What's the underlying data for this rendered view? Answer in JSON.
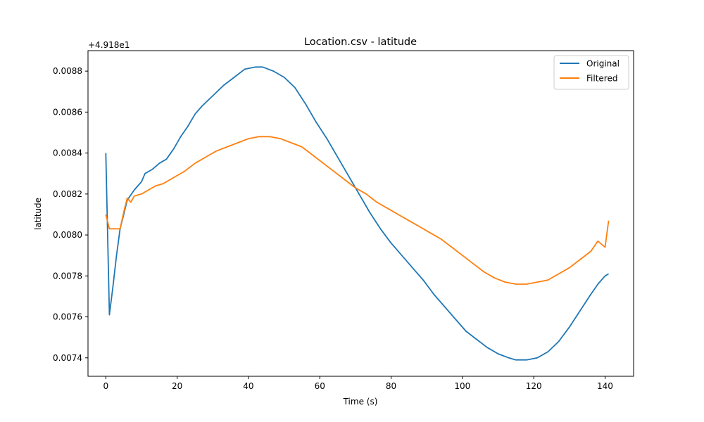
{
  "chart_data": {
    "type": "line",
    "title": "Location.csv - latitude",
    "xlabel": "Time (s)",
    "ylabel": "latitude",
    "y_offset_label": "+4.918e1",
    "xlim": [
      -5,
      148
    ],
    "ylim": [
      0.00731,
      0.0089
    ],
    "x_ticks": [
      0,
      20,
      40,
      60,
      80,
      100,
      120,
      140
    ],
    "x_tick_labels": [
      "0",
      "20",
      "40",
      "60",
      "80",
      "100",
      "120",
      "140"
    ],
    "y_ticks": [
      0.0074,
      0.0076,
      0.0078,
      0.008,
      0.0082,
      0.0084,
      0.0086,
      0.0088
    ],
    "y_tick_labels": [
      "0.0074",
      "0.0076",
      "0.0078",
      "0.0080",
      "0.0082",
      "0.0084",
      "0.0086",
      "0.0088"
    ],
    "grid": false,
    "legend_position": "top-right",
    "series": [
      {
        "name": "Original",
        "color": "#1f77b4",
        "points": [
          [
            0,
            0.0084
          ],
          [
            1,
            0.00761
          ],
          [
            2,
            0.00775
          ],
          [
            3,
            0.0079
          ],
          [
            4,
            0.00803
          ],
          [
            5,
            0.0081
          ],
          [
            6,
            0.00817
          ],
          [
            8,
            0.00822
          ],
          [
            10,
            0.00826
          ],
          [
            11,
            0.0083
          ],
          [
            13,
            0.00832
          ],
          [
            15,
            0.00835
          ],
          [
            17,
            0.00837
          ],
          [
            19,
            0.00842
          ],
          [
            21,
            0.00848
          ],
          [
            23,
            0.00853
          ],
          [
            25,
            0.00859
          ],
          [
            27,
            0.00863
          ],
          [
            30,
            0.00868
          ],
          [
            33,
            0.00873
          ],
          [
            36,
            0.00877
          ],
          [
            39,
            0.00881
          ],
          [
            42,
            0.00882
          ],
          [
            44,
            0.00882
          ],
          [
            47,
            0.0088
          ],
          [
            50,
            0.00877
          ],
          [
            53,
            0.00872
          ],
          [
            56,
            0.00864
          ],
          [
            59,
            0.00855
          ],
          [
            62,
            0.00847
          ],
          [
            65,
            0.00838
          ],
          [
            68,
            0.00829
          ],
          [
            71,
            0.0082
          ],
          [
            74,
            0.00811
          ],
          [
            77,
            0.00803
          ],
          [
            80,
            0.00796
          ],
          [
            83,
            0.0079
          ],
          [
            86,
            0.00784
          ],
          [
            89,
            0.00778
          ],
          [
            92,
            0.00771
          ],
          [
            95,
            0.00765
          ],
          [
            98,
            0.00759
          ],
          [
            101,
            0.00753
          ],
          [
            104,
            0.00749
          ],
          [
            107,
            0.00745
          ],
          [
            110,
            0.00742
          ],
          [
            113,
            0.0074
          ],
          [
            115,
            0.00739
          ],
          [
            118,
            0.00739
          ],
          [
            121,
            0.0074
          ],
          [
            124,
            0.00743
          ],
          [
            127,
            0.00748
          ],
          [
            130,
            0.00755
          ],
          [
            133,
            0.00763
          ],
          [
            136,
            0.00771
          ],
          [
            138,
            0.00776
          ],
          [
            140,
            0.0078
          ],
          [
            141,
            0.00781
          ]
        ]
      },
      {
        "name": "Filtered",
        "color": "#ff7f0e",
        "points": [
          [
            0,
            0.0081
          ],
          [
            1,
            0.00803
          ],
          [
            2,
            0.00803
          ],
          [
            3,
            0.00803
          ],
          [
            4,
            0.00803
          ],
          [
            5,
            0.00811
          ],
          [
            6,
            0.00818
          ],
          [
            7,
            0.00816
          ],
          [
            8,
            0.00819
          ],
          [
            10,
            0.0082
          ],
          [
            12,
            0.00822
          ],
          [
            14,
            0.00824
          ],
          [
            16,
            0.00825
          ],
          [
            18,
            0.00827
          ],
          [
            20,
            0.00829
          ],
          [
            22,
            0.00831
          ],
          [
            25,
            0.00835
          ],
          [
            28,
            0.00838
          ],
          [
            31,
            0.00841
          ],
          [
            34,
            0.00843
          ],
          [
            37,
            0.00845
          ],
          [
            40,
            0.00847
          ],
          [
            43,
            0.00848
          ],
          [
            46,
            0.00848
          ],
          [
            49,
            0.00847
          ],
          [
            52,
            0.00845
          ],
          [
            55,
            0.00843
          ],
          [
            58,
            0.00839
          ],
          [
            61,
            0.00835
          ],
          [
            64,
            0.00831
          ],
          [
            67,
            0.00827
          ],
          [
            70,
            0.00823
          ],
          [
            73,
            0.0082
          ],
          [
            76,
            0.00816
          ],
          [
            79,
            0.00813
          ],
          [
            82,
            0.0081
          ],
          [
            85,
            0.00807
          ],
          [
            88,
            0.00804
          ],
          [
            91,
            0.00801
          ],
          [
            94,
            0.00798
          ],
          [
            97,
            0.00794
          ],
          [
            100,
            0.0079
          ],
          [
            103,
            0.00786
          ],
          [
            106,
            0.00782
          ],
          [
            109,
            0.00779
          ],
          [
            112,
            0.00777
          ],
          [
            115,
            0.00776
          ],
          [
            118,
            0.00776
          ],
          [
            121,
            0.00777
          ],
          [
            124,
            0.00778
          ],
          [
            127,
            0.00781
          ],
          [
            130,
            0.00784
          ],
          [
            133,
            0.00788
          ],
          [
            136,
            0.00792
          ],
          [
            138,
            0.00797
          ],
          [
            140,
            0.00794
          ],
          [
            141,
            0.00807
          ]
        ]
      }
    ]
  }
}
